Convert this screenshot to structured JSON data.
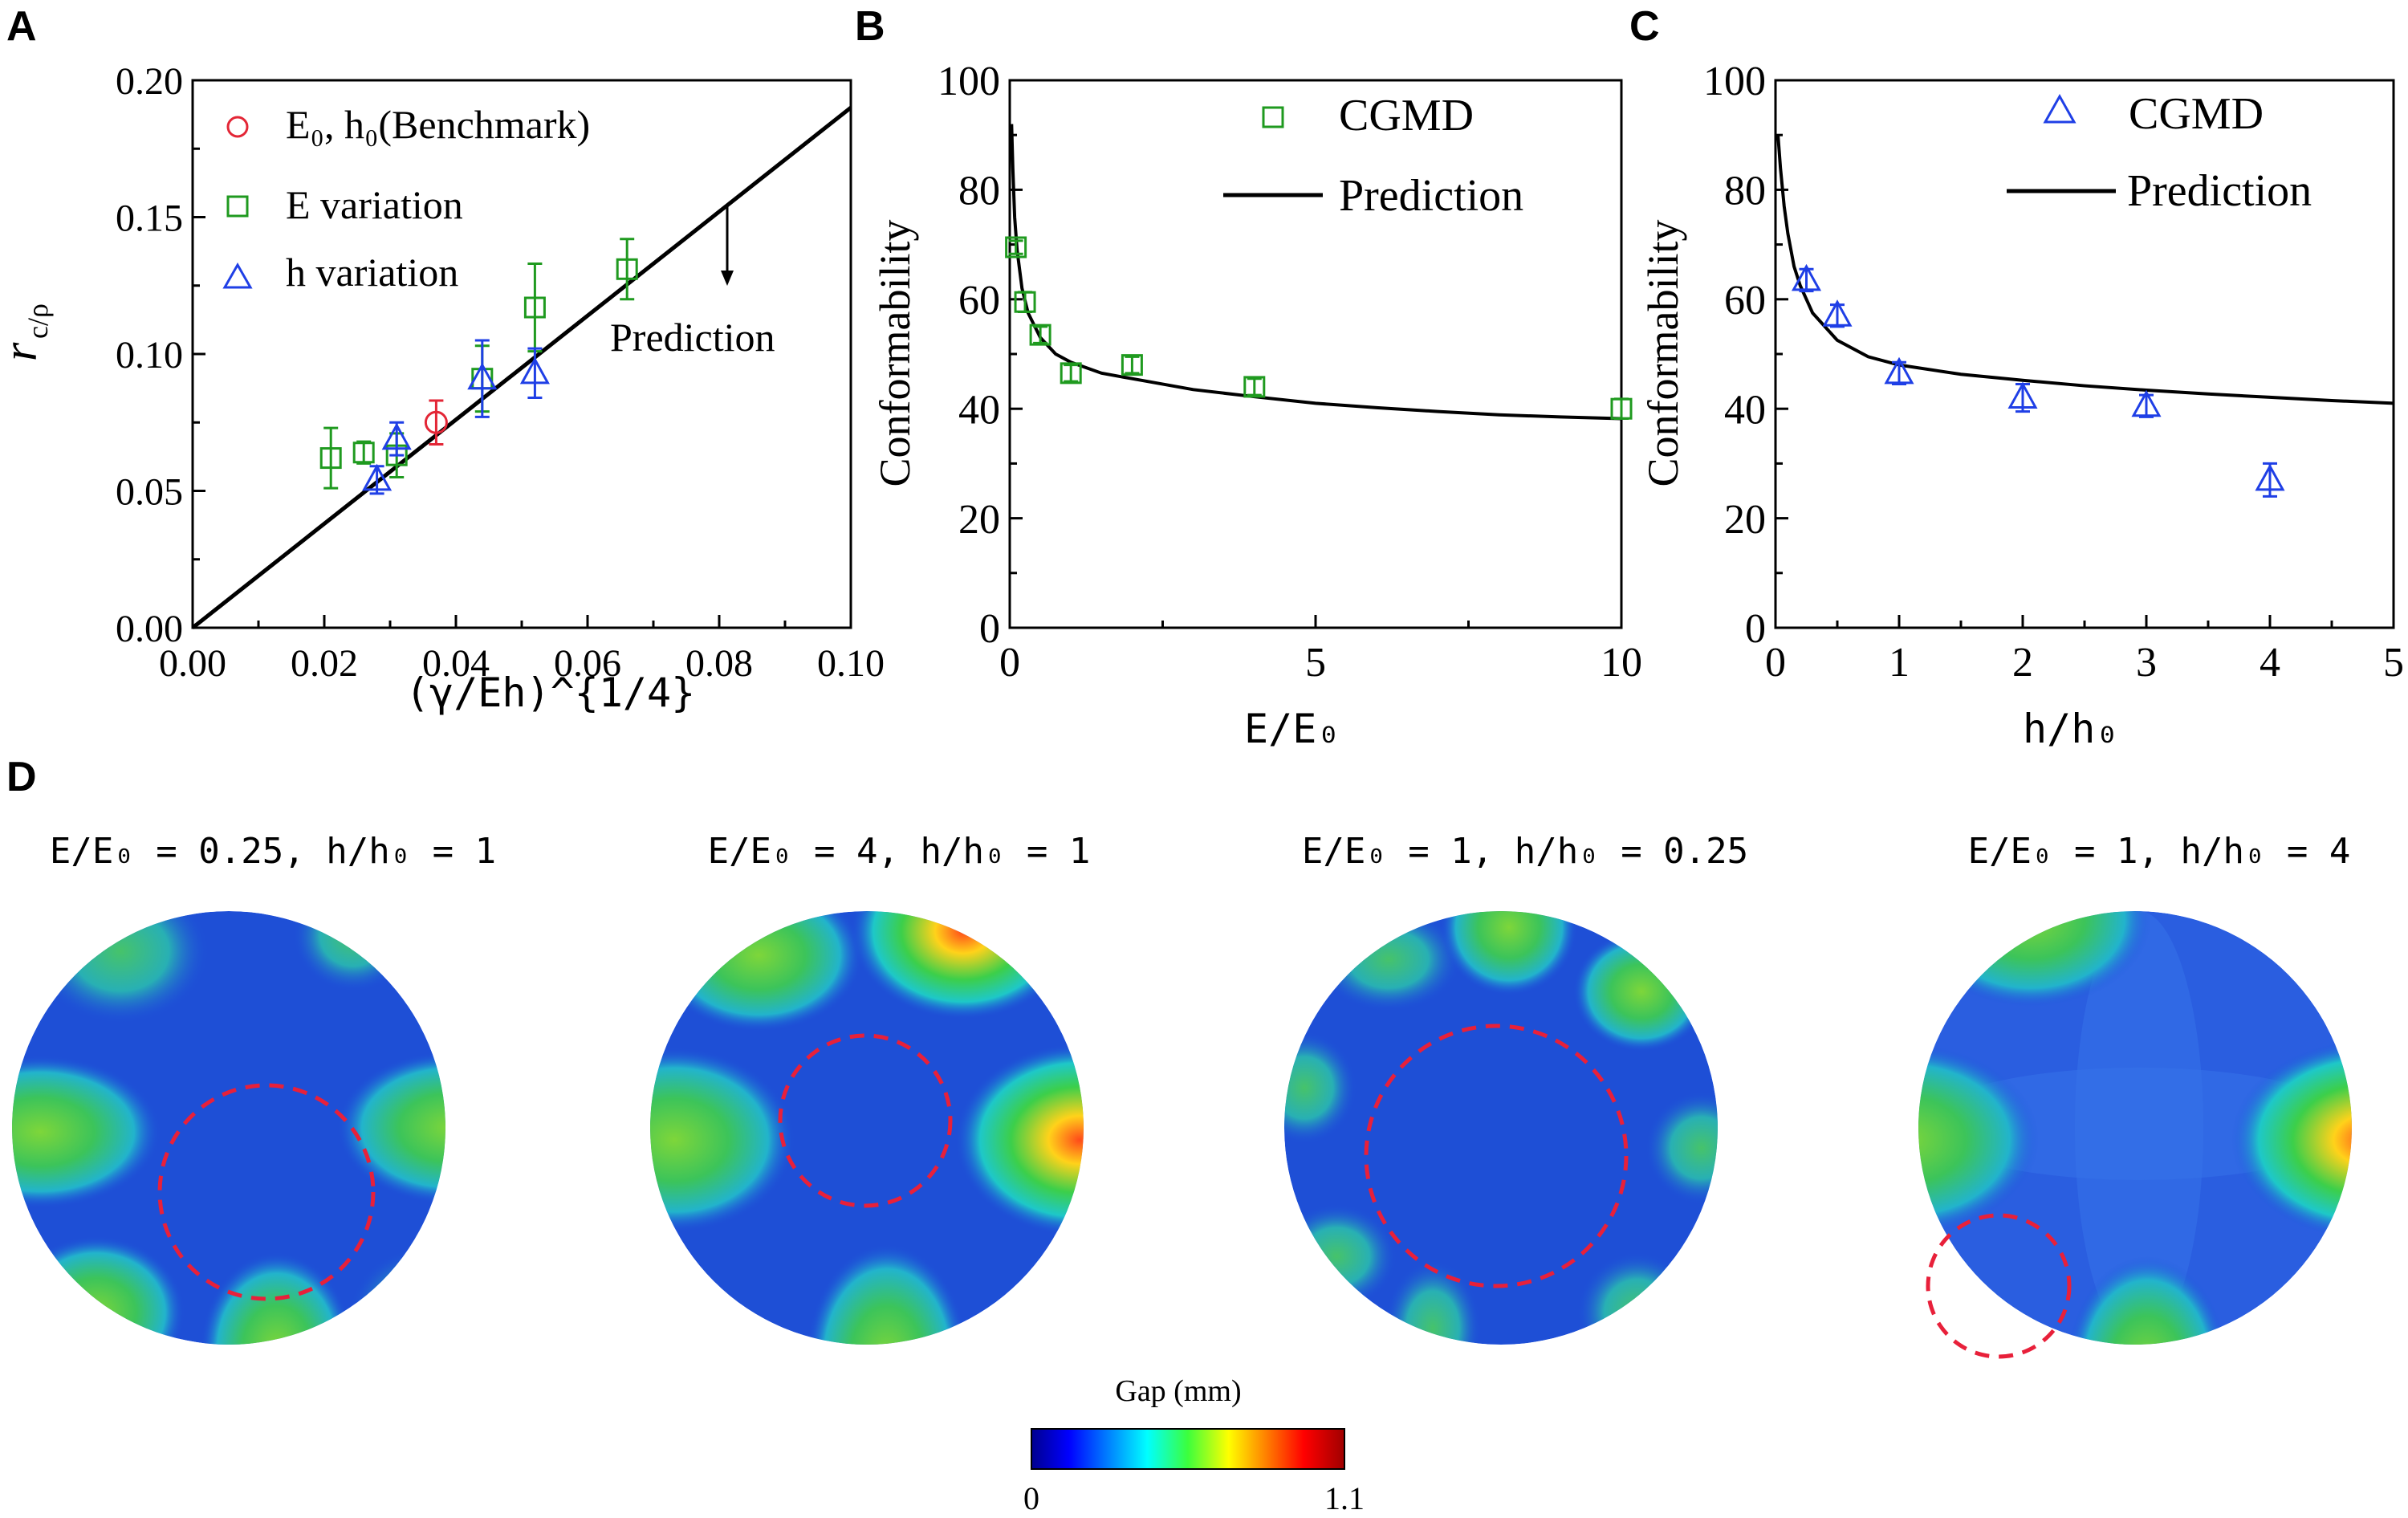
{
  "panels": {
    "A": {
      "label": "A",
      "x_label": "(γ/Eh)^{1/4}",
      "y_label_main": "r",
      "y_label_sub": "c/ρ",
      "legend": {
        "benchmark": "E₀, h₀(Benchmark)",
        "e_variation": "E variation",
        "h_variation": "h variation"
      },
      "annotation": "Prediction"
    },
    "B": {
      "label": "B",
      "y_label": "Conformability",
      "x_label": "E/E₀",
      "legend_points": "CGMD",
      "legend_line": "Prediction"
    },
    "C": {
      "label": "C",
      "y_label": "Conformability",
      "x_label": "h/h₀",
      "legend_points": "CGMD",
      "legend_line": "Prediction"
    },
    "D": {
      "label": "D",
      "maps": [
        {
          "title": "E/E₀ = 0.25, h/h₀ = 1"
        },
        {
          "title": "E/E₀ = 4, h/h₀ = 1"
        },
        {
          "title": "E/E₀ = 1, h/h₀ = 0.25"
        },
        {
          "title": "E/E₀ = 1, h/h₀ = 4"
        }
      ],
      "colorbar": {
        "title": "Gap (mm)",
        "min_label": "0",
        "max_label": "1.1",
        "range": [
          0,
          1.1
        ]
      }
    }
  },
  "colors": {
    "benchmark": "#e32636",
    "e_variation": "#1f9a1f",
    "h_variation": "#1f3fe6",
    "line": "#000000",
    "dashed_circle": "#e8203a"
  },
  "chart_data": [
    {
      "type": "scatter",
      "panel": "A",
      "xlim": [
        0,
        0.1
      ],
      "ylim": [
        0,
        0.2
      ],
      "xticks": [
        "0.00",
        "0.02",
        "0.04",
        "0.06",
        "0.08",
        "0.10"
      ],
      "yticks": [
        "0.00",
        "0.05",
        "0.10",
        "0.15",
        "0.20"
      ],
      "series": [
        {
          "name": "E₀, h₀(Benchmark)",
          "marker": "circle",
          "points": [
            [
              0.037,
              0.075,
              0.008
            ]
          ]
        },
        {
          "name": "E variation",
          "marker": "square",
          "points": [
            [
              0.021,
              0.062,
              0.011
            ],
            [
              0.026,
              0.064,
              0.004
            ],
            [
              0.031,
              0.063,
              0.008
            ],
            [
              0.044,
              0.091,
              0.012
            ],
            [
              0.052,
              0.117,
              0.016
            ],
            [
              0.066,
              0.131,
              0.011
            ]
          ]
        },
        {
          "name": "h variation",
          "marker": "triangle",
          "points": [
            [
              0.028,
              0.054,
              0.005
            ],
            [
              0.031,
              0.069,
              0.006
            ],
            [
              0.044,
              0.091,
              0.014
            ],
            [
              0.052,
              0.093,
              0.009
            ]
          ]
        }
      ],
      "line": {
        "name": "Prediction",
        "x": [
          0,
          0.1
        ],
        "y": [
          0,
          0.19
        ]
      }
    },
    {
      "type": "scatter",
      "panel": "B",
      "xlim": [
        0,
        10
      ],
      "ylim": [
        0,
        100
      ],
      "xticks": [
        "0",
        "5",
        "10"
      ],
      "yticks": [
        "0",
        "20",
        "40",
        "60",
        "80",
        "100"
      ],
      "series": [
        {
          "name": "CGMD",
          "marker": "square",
          "points": [
            [
              0.1,
              69.5,
              1.2
            ],
            [
              0.25,
              59.5,
              1.8
            ],
            [
              0.5,
              53.5,
              1.5
            ],
            [
              1,
              46.5,
              1.5
            ],
            [
              2,
              48,
              1.5
            ],
            [
              4,
              44,
              1.5
            ],
            [
              10,
              40,
              1.8
            ]
          ]
        }
      ],
      "line": {
        "name": "Prediction",
        "x": [
          0.03,
          0.05,
          0.08,
          0.12,
          0.2,
          0.3,
          0.5,
          0.75,
          1,
          1.5,
          2,
          3,
          4,
          5,
          6,
          7,
          8,
          9,
          10
        ],
        "y": [
          92,
          84,
          75,
          69,
          62,
          57.5,
          53,
          50,
          48.5,
          46.5,
          45.5,
          43.5,
          42.2,
          41,
          40.2,
          39.5,
          38.9,
          38.5,
          38.2
        ]
      }
    },
    {
      "type": "scatter",
      "panel": "C",
      "xlim": [
        0,
        5
      ],
      "ylim": [
        0,
        100
      ],
      "xticks": [
        "0",
        "1",
        "2",
        "3",
        "4",
        "5"
      ],
      "yticks": [
        "0",
        "20",
        "40",
        "60",
        "80",
        "100"
      ],
      "series": [
        {
          "name": "CGMD",
          "marker": "triangle",
          "points": [
            [
              0.25,
              63.5,
              2
            ],
            [
              0.5,
              57,
              2
            ],
            [
              1,
              46.5,
              2
            ],
            [
              2,
              42,
              2.5
            ],
            [
              3,
              40.5,
              2
            ],
            [
              4,
              27,
              3
            ]
          ]
        }
      ],
      "line": {
        "name": "Prediction",
        "x": [
          0.02,
          0.04,
          0.07,
          0.1,
          0.15,
          0.2,
          0.3,
          0.5,
          0.75,
          1,
          1.5,
          2,
          2.5,
          3,
          3.5,
          4,
          4.5,
          5
        ],
        "y": [
          90,
          84,
          77,
          72,
          66,
          62.5,
          57.5,
          52.5,
          49.5,
          48,
          46.3,
          45.2,
          44.2,
          43.4,
          42.7,
          42.1,
          41.5,
          41
        ]
      }
    }
  ]
}
